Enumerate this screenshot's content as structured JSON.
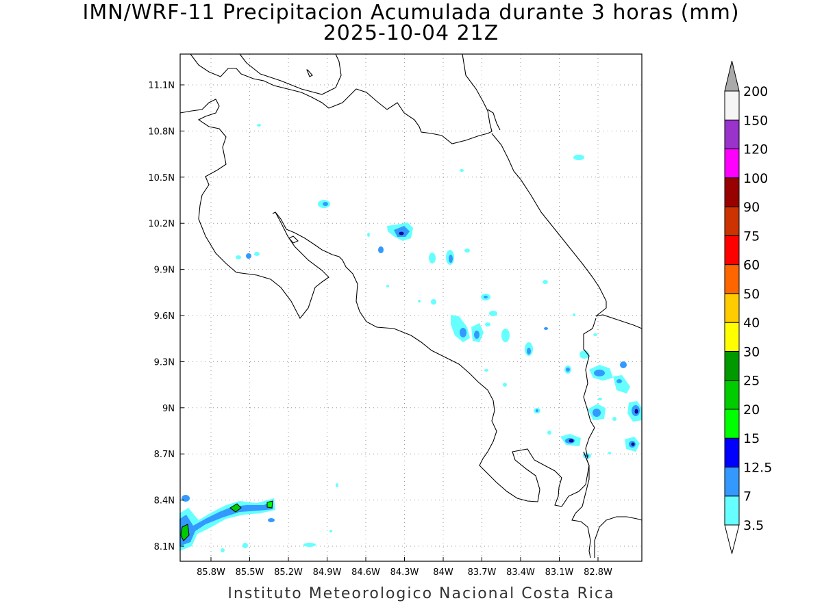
{
  "title_line1": "IMN/WRF-11 Precipitacion Acumulada durante 3 horas (mm)",
  "title_line2": "2025-10-04 21Z",
  "footer": "Instituto Meteorologico Nacional Costa Rica",
  "map": {
    "lon_ticks": [
      "85.8W",
      "85.5W",
      "85.2W",
      "84.9W",
      "84.6W",
      "84.3W",
      "84W",
      "83.7W",
      "83.4W",
      "83.1W",
      "82.8W"
    ],
    "lat_ticks": [
      "11.1N",
      "10.8N",
      "10.5N",
      "10.2N",
      "9.9N",
      "9.6N",
      "9.3N",
      "9N",
      "8.7N",
      "8.4N",
      "8.1N"
    ],
    "gridlines": true
  },
  "colorbar": {
    "levels": [
      "3.5",
      "7",
      "12.5",
      "15",
      "20",
      "25",
      "30",
      "40",
      "50",
      "60",
      "75",
      "90",
      "100",
      "120",
      "150",
      "200"
    ],
    "colors": [
      "#ffffff",
      "#66ffff",
      "#3399ff",
      "#0000ff",
      "#00ff00",
      "#00cc00",
      "#009900",
      "#ffff00",
      "#ffcc00",
      "#ff6600",
      "#ff0000",
      "#cc3300",
      "#990000",
      "#ff00ff",
      "#9933cc",
      "#f5f5f5",
      "#aaaaaa"
    ]
  }
}
